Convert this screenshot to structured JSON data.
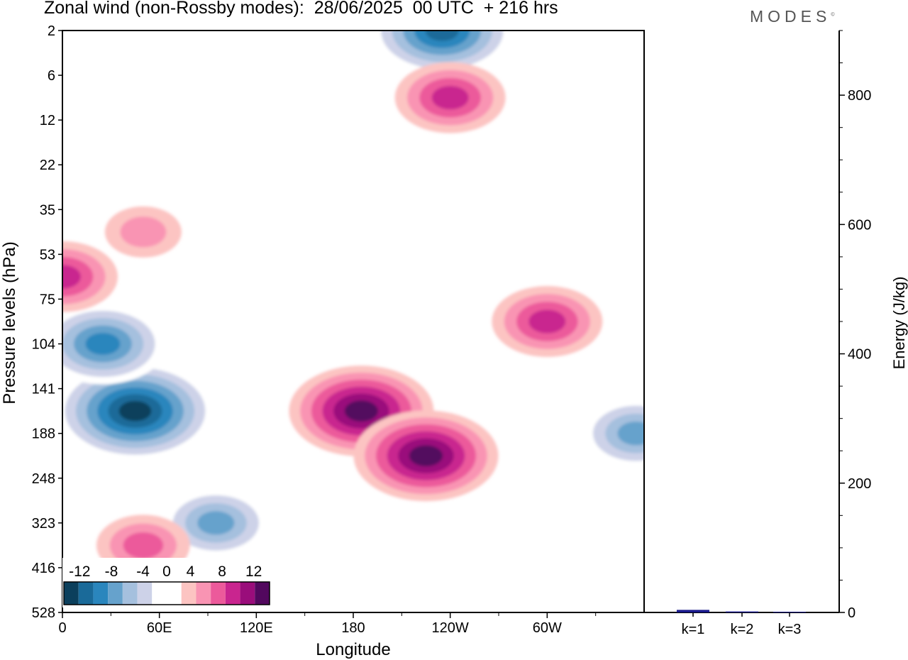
{
  "header": {
    "title": "Zonal wind (non-Rossby modes):  28/06/2025  00 UTC  + 216 hrs",
    "logo": "MODES",
    "logo_mark": "©"
  },
  "chart_data": [
    {
      "type": "heatmap",
      "title": "Zonal wind (non-Rossby modes):  28/06/2025  00 UTC  + 216 hrs",
      "xlabel": "Longitude",
      "ylabel": "Pressure levels (hPa)",
      "x_ticks": [
        "0",
        "60E",
        "120E",
        "180",
        "120W",
        "60W"
      ],
      "x_tick_values": [
        0,
        60,
        120,
        180,
        240,
        300
      ],
      "xlim": [
        0,
        360
      ],
      "y_ticks": [
        "2",
        "6",
        "12",
        "22",
        "35",
        "53",
        "75",
        "104",
        "141",
        "188",
        "248",
        "323",
        "416",
        "528"
      ],
      "y_scale": "model levels (log-like, pressure increasing downward)",
      "colorbar": {
        "tick_labels": [
          "-12",
          "-8",
          "-4",
          "0",
          "4",
          "8",
          "12"
        ],
        "levels": [
          -14,
          -12,
          -10,
          -8,
          -6,
          -4,
          -2,
          2,
          4,
          6,
          8,
          10,
          12,
          14
        ],
        "colors": [
          "#0b3f5c",
          "#1a6a99",
          "#2a86bd",
          "#66a2cc",
          "#a5c0de",
          "#cdd2e8",
          "#ffffff",
          "#ffffff",
          "#fcc4c2",
          "#f994b3",
          "#ec5a9b",
          "#c9258f",
          "#9a0d7b",
          "#52085e"
        ]
      },
      "features": [
        {
          "sign": "negative",
          "lon": 45,
          "level": "141-188",
          "peak": -14
        },
        {
          "sign": "negative",
          "lon": 25,
          "level": "75-141",
          "peak": -10
        },
        {
          "sign": "negative",
          "lon": 95,
          "level": "248-416",
          "peak": -8
        },
        {
          "sign": "negative",
          "lon": 235,
          "level": "2",
          "peak": -12
        },
        {
          "sign": "negative",
          "lon": 355,
          "level": "141-248",
          "peak": -8
        },
        {
          "sign": "positive",
          "lon": 185,
          "level": "141-188",
          "peak": 12
        },
        {
          "sign": "positive",
          "lon": 225,
          "level": "188-248",
          "peak": 12
        },
        {
          "sign": "positive",
          "lon": 300,
          "level": "75-104",
          "peak": 8
        },
        {
          "sign": "positive",
          "lon": 240,
          "level": "6-12",
          "peak": 8
        },
        {
          "sign": "positive",
          "lon": 0,
          "level": "53-75",
          "peak": 8
        },
        {
          "sign": "positive",
          "lon": 50,
          "level": "35-53",
          "peak": 4
        },
        {
          "sign": "positive",
          "lon": 50,
          "level": "323-416",
          "peak": 6
        }
      ]
    },
    {
      "type": "bar",
      "ylabel": "Energy (J/kg)",
      "categories": [
        "k=1",
        "k=2",
        "k=3"
      ],
      "values": [
        4,
        1.5,
        1
      ],
      "ylim": [
        0,
        900
      ],
      "y_ticks": [
        "0",
        "200",
        "400",
        "600",
        "800"
      ],
      "y_tick_values": [
        0,
        200,
        400,
        600,
        800
      ],
      "bar_color": "#1a1a8c"
    }
  ]
}
